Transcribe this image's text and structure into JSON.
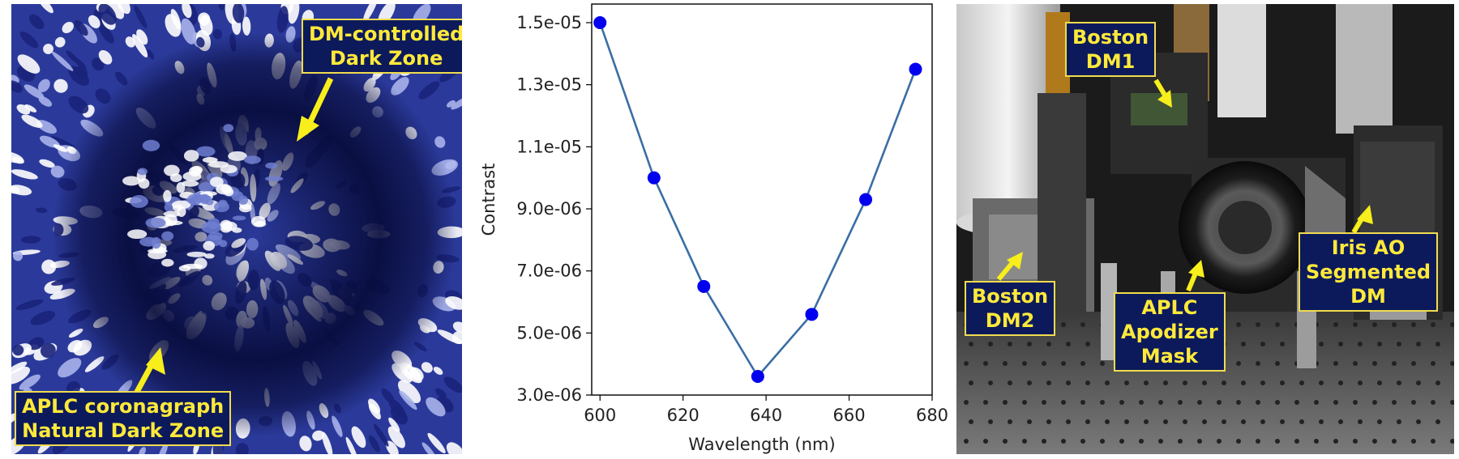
{
  "left_panel": {
    "label_dm_zone": [
      "DM-controlled",
      "Dark Zone"
    ],
    "label_aplc_zone": [
      "APLC coronagraph",
      "Natural Dark Zone"
    ]
  },
  "right_panel": {
    "label_boston_dm1": [
      "Boston",
      "DM1"
    ],
    "label_boston_dm2": [
      "Boston",
      "DM2"
    ],
    "label_aplc_mask": [
      "APLC",
      "Apodizer",
      "Mask"
    ],
    "label_iris_ao": [
      "Iris AO",
      "Segmented",
      "DM"
    ]
  },
  "colors": {
    "callout_fill": "#0c1a5c",
    "callout_text": "#ffe93a",
    "arrow": "#f7ee1c",
    "series_line": "#3a6ea5",
    "series_marker": "#0000ee",
    "speckle_dark": "#070b3a",
    "speckle_light": "#ffffff"
  },
  "chart_data": {
    "type": "line",
    "title": "",
    "xlabel": "Wavelength (nm)",
    "ylabel": "Contrast",
    "xlim": [
      598,
      680
    ],
    "ylim": [
      3e-06,
      1.56e-05
    ],
    "xticks": [
      600,
      620,
      640,
      660,
      680
    ],
    "xtick_labels": [
      "600",
      "620",
      "640",
      "660",
      "680"
    ],
    "yticks": [
      3e-06,
      5e-06,
      7e-06,
      9e-06,
      1.1e-05,
      1.3e-05,
      1.5e-05
    ],
    "ytick_labels": [
      "3.0e-06",
      "5.0e-06",
      "7.0e-06",
      "9.0e-06",
      "1.1e-05",
      "1.3e-05",
      "1.5e-05"
    ],
    "grid": false,
    "legend": "none",
    "series": [
      {
        "x": [
          600,
          613,
          625,
          638,
          651,
          664,
          676
        ],
        "y": [
          1.5e-05,
          1e-05,
          6.5e-06,
          3.6e-06,
          5.6e-06,
          9.3e-06,
          1.35e-05
        ]
      }
    ]
  }
}
